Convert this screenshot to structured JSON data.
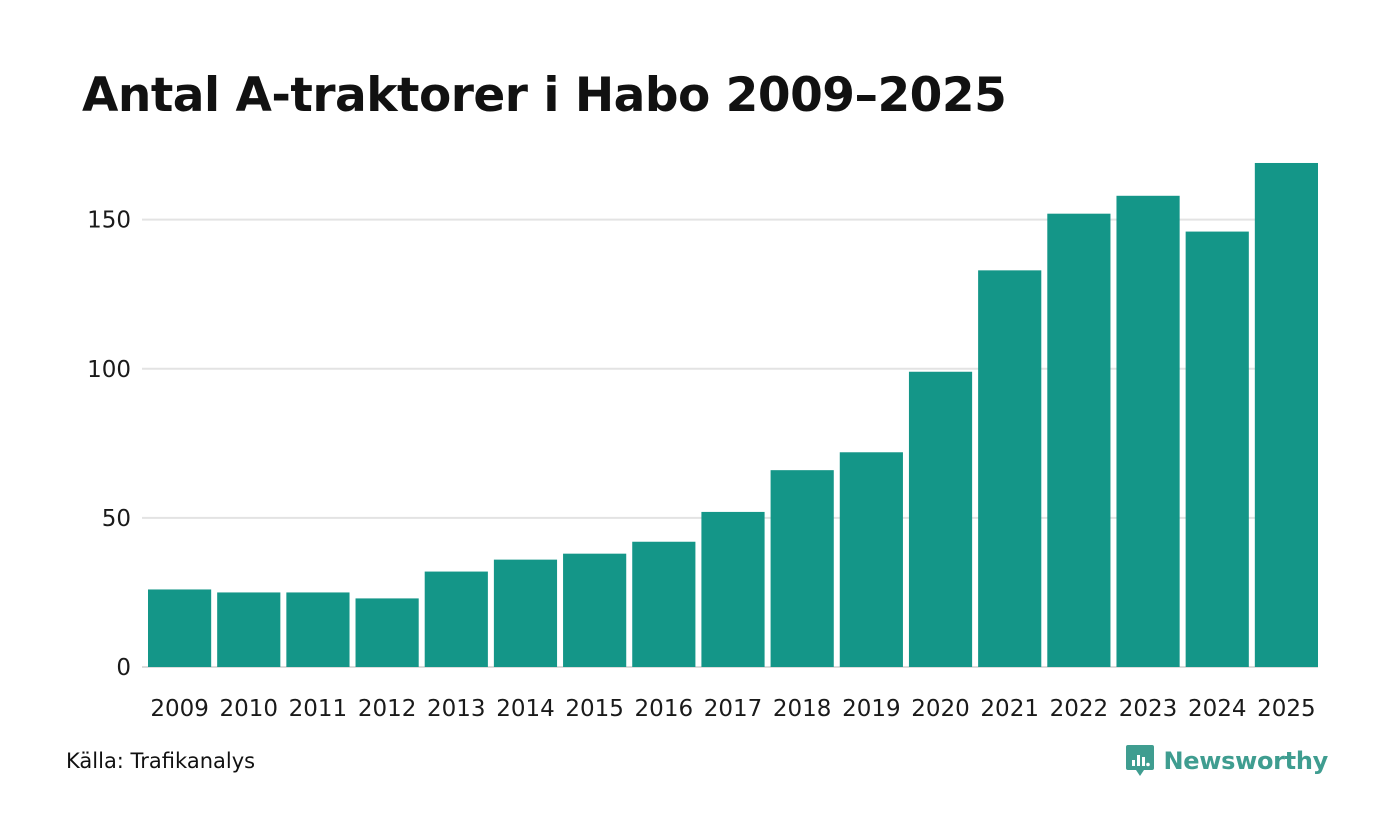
{
  "chart_data": {
    "type": "bar",
    "title": "Antal A-traktorer i Habo 2009–2025",
    "xlabel": "",
    "ylabel": "",
    "categories": [
      "2009",
      "2010",
      "2011",
      "2012",
      "2013",
      "2014",
      "2015",
      "2016",
      "2017",
      "2018",
      "2019",
      "2020",
      "2021",
      "2022",
      "2023",
      "2024",
      "2025"
    ],
    "values": [
      26,
      25,
      25,
      23,
      32,
      36,
      38,
      42,
      52,
      66,
      72,
      99,
      133,
      152,
      158,
      146,
      169
    ],
    "ylim": [
      0,
      170
    ],
    "yticks": [
      0,
      50,
      100,
      150
    ],
    "grid": true,
    "legend": "none",
    "bar_color": "#149688"
  },
  "footer": {
    "source": "Källa: Trafikanalys",
    "brand": "Newsworthy",
    "brand_icon": "newsworthy-logo-icon",
    "brand_color": "#3f9d90"
  }
}
